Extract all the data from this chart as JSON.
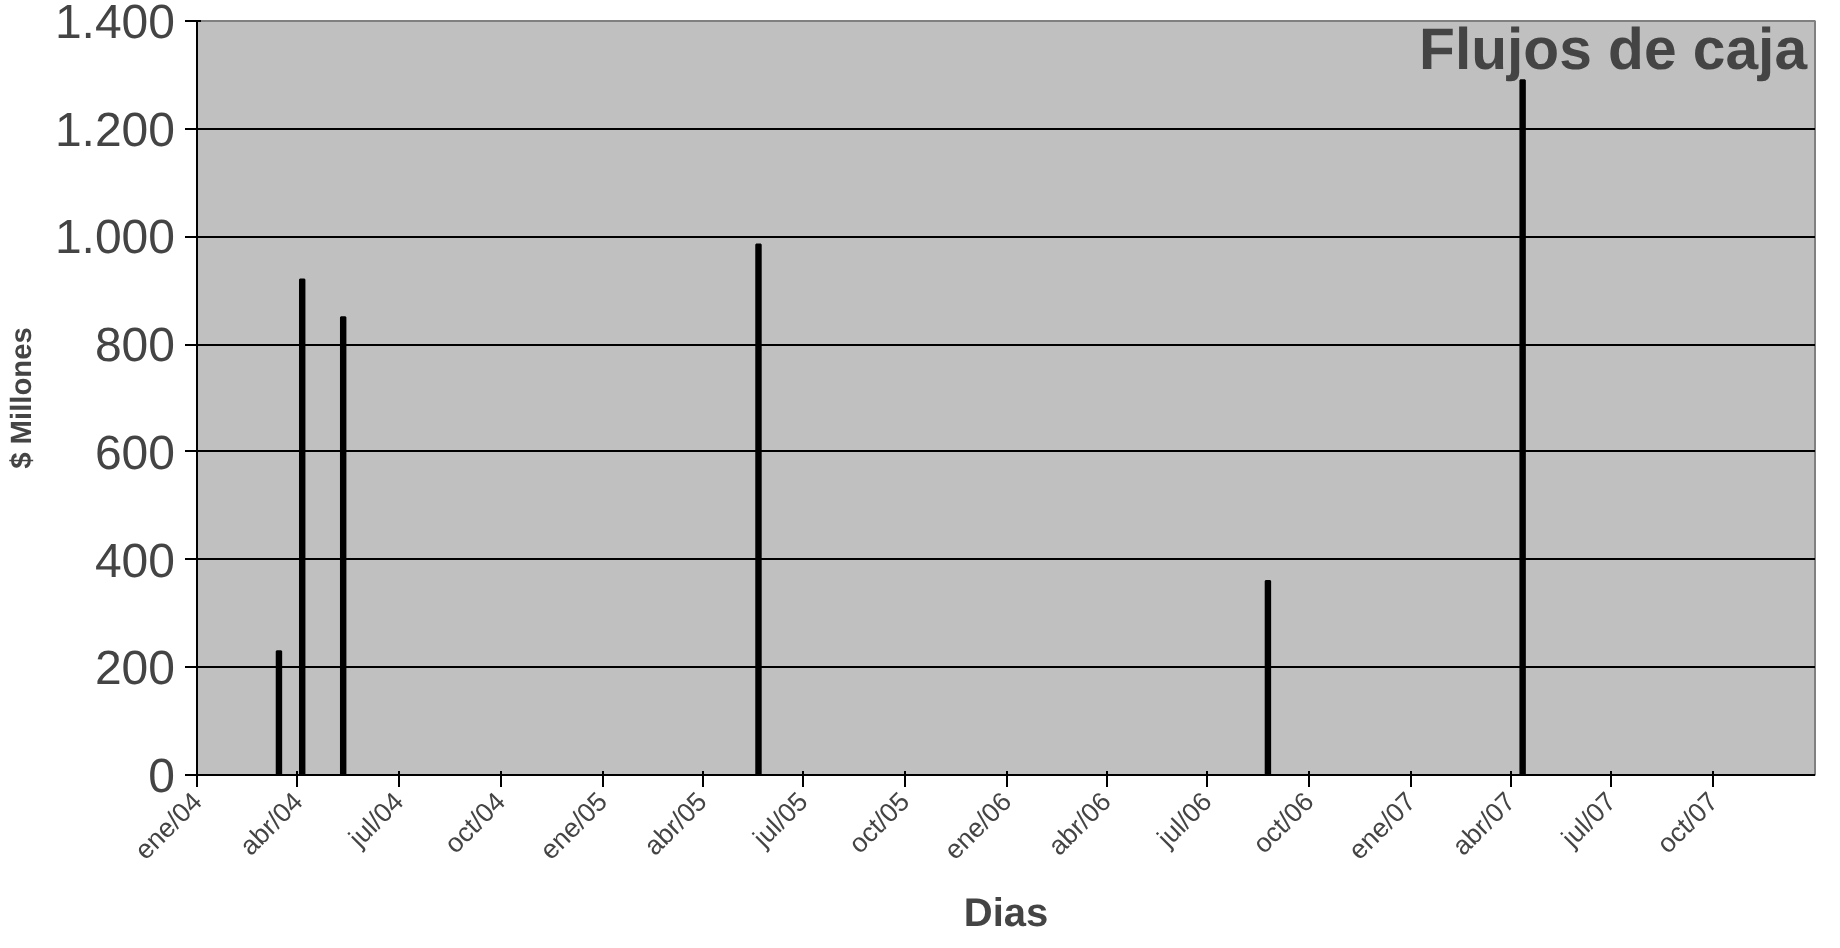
{
  "chart_data": {
    "type": "bar",
    "title": "Flujos de caja",
    "xlabel": "Dias",
    "ylabel": "$ Millones",
    "x": [
      "2004-03-15",
      "2004-04-05",
      "2004-05-12",
      "2005-05-22",
      "2006-08-25",
      "2007-04-12"
    ],
    "series": [
      {
        "color": "#000000",
        "values": [
          230,
          920,
          850,
          985,
          360,
          1290
        ]
      }
    ],
    "xlim": [
      "2004-01-01",
      "2008-01-01"
    ],
    "xticks": [
      {
        "value": "2004-01-01",
        "label": "ene/04"
      },
      {
        "value": "2004-04-01",
        "label": "abr/04"
      },
      {
        "value": "2004-07-01",
        "label": "jul/04"
      },
      {
        "value": "2004-10-01",
        "label": "oct/04"
      },
      {
        "value": "2005-01-01",
        "label": "ene/05"
      },
      {
        "value": "2005-04-01",
        "label": "abr/05"
      },
      {
        "value": "2005-07-01",
        "label": "jul/05"
      },
      {
        "value": "2005-10-01",
        "label": "oct/05"
      },
      {
        "value": "2006-01-01",
        "label": "ene/06"
      },
      {
        "value": "2006-04-01",
        "label": "abr/06"
      },
      {
        "value": "2006-07-01",
        "label": "jul/06"
      },
      {
        "value": "2006-10-01",
        "label": "oct/06"
      },
      {
        "value": "2007-01-01",
        "label": "ene/07"
      },
      {
        "value": "2007-04-01",
        "label": "abr/07"
      },
      {
        "value": "2007-07-01",
        "label": "jul/07"
      },
      {
        "value": "2007-10-01",
        "label": "oct/07"
      }
    ],
    "ylim": [
      0,
      1400
    ],
    "yticks": [
      {
        "value": 0,
        "label": "0"
      },
      {
        "value": 200,
        "label": "200"
      },
      {
        "value": 400,
        "label": "400"
      },
      {
        "value": 600,
        "label": "600"
      },
      {
        "value": 800,
        "label": "800"
      },
      {
        "value": 1000,
        "label": "1.000"
      },
      {
        "value": 1200,
        "label": "1.200"
      },
      {
        "value": 1400,
        "label": "1.400"
      }
    ],
    "grid": "y"
  }
}
